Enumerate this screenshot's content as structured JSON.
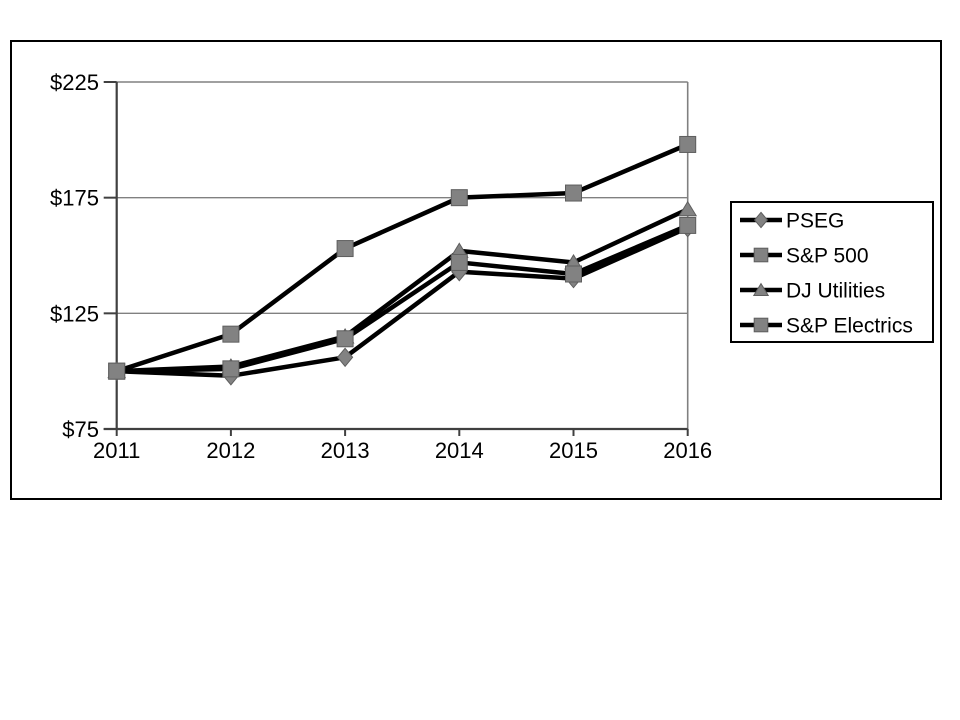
{
  "page": {
    "background": "#ffffff",
    "description": "Comparison of cumulative total return line chart"
  },
  "chart_data": {
    "type": "line",
    "title": "",
    "xlabel": "",
    "ylabel": "",
    "categories": [
      "2011",
      "2012",
      "2013",
      "2014",
      "2015",
      "2016"
    ],
    "series": [
      {
        "name": "PSEG",
        "marker": "diamond",
        "values": [
          100,
          98,
          106,
          143,
          140,
          162
        ]
      },
      {
        "name": "S&P 500",
        "marker": "square",
        "values": [
          100,
          116,
          153,
          175,
          177,
          198
        ]
      },
      {
        "name": "DJ Utilities",
        "marker": "triangle",
        "values": [
          100,
          102,
          115,
          152,
          147,
          170
        ]
      },
      {
        "name": "S&P Electrics",
        "marker": "square",
        "values": [
          100,
          101,
          114,
          147,
          142,
          163
        ]
      }
    ],
    "ylim": [
      75,
      225
    ],
    "yticks": [
      {
        "value": 225,
        "label": "$225"
      },
      {
        "value": 175,
        "label": "$175"
      },
      {
        "value": 125,
        "label": "$125"
      },
      {
        "value": 75,
        "label": "$75"
      }
    ],
    "grid": true,
    "legend_position": "right",
    "colors": {
      "line": "#000000",
      "marker_fill": "#828282",
      "marker_stroke": "#5e5e5e",
      "gridline": "#808080",
      "axis": "#404040",
      "text": "#000000",
      "legend_border": "#000000",
      "legend_background": "#ffffff",
      "frame_border": "#000000"
    }
  }
}
